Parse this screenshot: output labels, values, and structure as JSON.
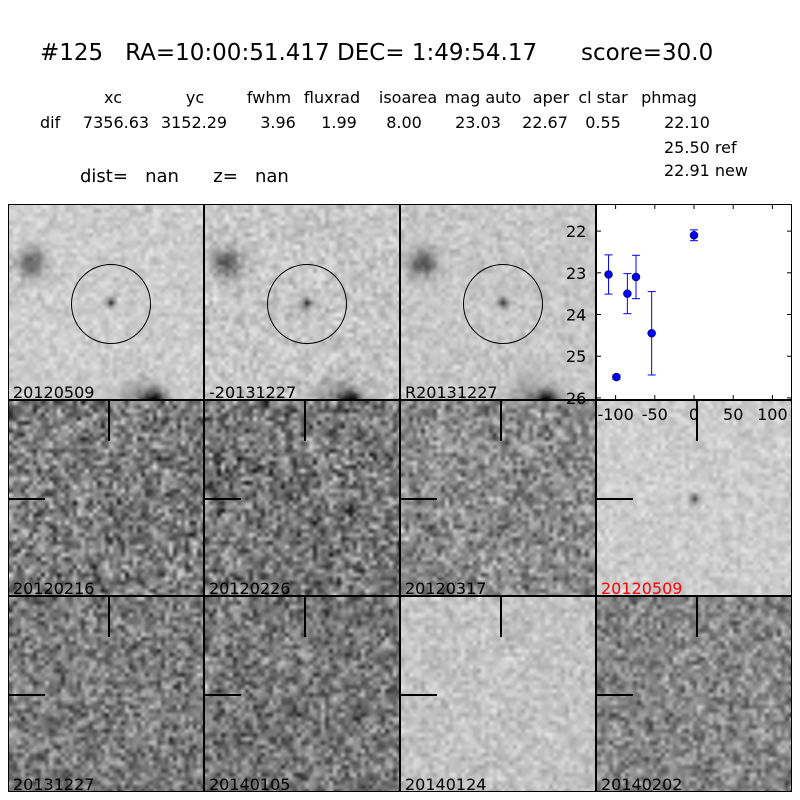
{
  "title": "#125   RA=10:00:51.417 DEC= 1:49:54.17      score=30.0",
  "table": {
    "headers": [
      "xc",
      "yc",
      "fwhm",
      "fluxrad",
      "isoarea",
      "mag auto",
      "aper",
      "cl star",
      "phmag"
    ],
    "row_label": "dif",
    "values": [
      "7356.63",
      "3152.29",
      "3.96",
      "1.99",
      "8.00",
      "23.03",
      "22.67",
      "0.55",
      "22.10"
    ],
    "phmag_extra": [
      "25.50 ref",
      "22.91 new"
    ]
  },
  "dist_line": "dist=   nan      z=   nan",
  "panels": [
    {
      "label": "20120509",
      "circle": true,
      "color": "#000000"
    },
    {
      "label": "-20131227",
      "circle": true,
      "color": "#000000"
    },
    {
      "label": "R20131227",
      "circle": true,
      "color": "#000000"
    },
    {
      "label": "20120216",
      "crosshair": true,
      "color": "#000000"
    },
    {
      "label": "20120226",
      "crosshair": true,
      "color": "#000000"
    },
    {
      "label": "20120317",
      "crosshair": true,
      "color": "#000000"
    },
    {
      "label": "20120509",
      "crosshair": true,
      "color": "#ff0000"
    },
    {
      "label": "20131227",
      "crosshair": true,
      "color": "#000000"
    },
    {
      "label": "20140105",
      "crosshair": true,
      "color": "#000000"
    },
    {
      "label": "20140124",
      "crosshair": true,
      "color": "#000000"
    },
    {
      "label": "20140202",
      "crosshair": true,
      "color": "#000000"
    }
  ],
  "chart_data": {
    "type": "scatter",
    "x": [
      -109,
      -99,
      -85,
      -74,
      -54,
      0
    ],
    "y": [
      23.04,
      25.5,
      23.5,
      23.1,
      24.45,
      22.1
    ],
    "yerr": [
      0.47,
      0.05,
      0.48,
      0.52,
      1.0,
      0.13
    ],
    "xlim": [
      -125,
      125
    ],
    "ylim": [
      26.05,
      21.35
    ],
    "y_inverted": true,
    "xticks": [
      "-100",
      "-50",
      "0",
      "50",
      "100"
    ],
    "xtick_values": [
      -100,
      -50,
      0,
      50,
      100
    ],
    "yticks": [
      "22",
      "23",
      "24",
      "25",
      "26"
    ],
    "ytick_values": [
      22,
      23,
      24,
      25,
      26
    ],
    "marker_color": "#0000ff",
    "grid": false
  }
}
